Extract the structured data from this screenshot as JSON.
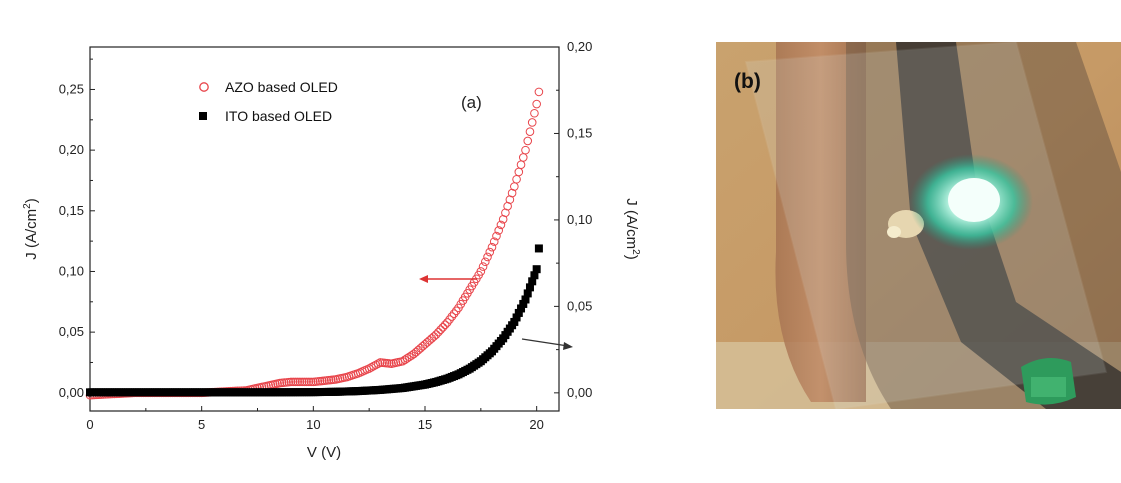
{
  "chart_data": {
    "type": "scatter",
    "panel_label": "(a)",
    "xlabel": "V (V)",
    "ylabel_left": "J (A/cm",
    "ylabel_right": "J (A/cm",
    "ylabel_unit_sup": "2",
    "ylabel_close": ")",
    "xlim": [
      0,
      21
    ],
    "ylim_left": [
      -0.015,
      0.285
    ],
    "ylim_right": [
      -0.0105,
      0.2
    ],
    "x_ticks": [
      0,
      5,
      10,
      15,
      20
    ],
    "x_tick_labels": [
      "0",
      "5",
      "10",
      "15",
      "20"
    ],
    "y_left_ticks": [
      0,
      0.05,
      0.1,
      0.15,
      0.2,
      0.25
    ],
    "y_left_tick_labels": [
      "0,00",
      "0,05",
      "0,10",
      "0,15",
      "0,20",
      "0,25"
    ],
    "y_right_ticks": [
      0,
      0.05,
      0.1,
      0.15,
      0.2
    ],
    "y_right_tick_labels": [
      "0,00",
      "0,05",
      "0,10",
      "0,15",
      "0,20"
    ],
    "grid": false,
    "legend_position": "top-left",
    "series": [
      {
        "name": "AZO based OLED",
        "axis": "left",
        "marker": "open-circle",
        "color": "#e8454b",
        "x": [
          0,
          1,
          2,
          3,
          4,
          5,
          6,
          7,
          7.5,
          8,
          8.5,
          9,
          9.5,
          10,
          10.5,
          11,
          11.5,
          12,
          12.5,
          13,
          13.5,
          14,
          14.5,
          15,
          15.5,
          16,
          16.5,
          17,
          17.5,
          18,
          18.5,
          19,
          19.5,
          20,
          20.1
        ],
        "y": [
          -0.002,
          -0.001,
          0,
          0,
          0,
          0,
          0.001,
          0.002,
          0.004,
          0.006,
          0.008,
          0.009,
          0.009,
          0.009,
          0.01,
          0.011,
          0.013,
          0.016,
          0.02,
          0.025,
          0.024,
          0.026,
          0.032,
          0.04,
          0.048,
          0.058,
          0.07,
          0.085,
          0.1,
          0.12,
          0.143,
          0.17,
          0.2,
          0.238,
          0.248
        ]
      },
      {
        "name": "ITO based OLED",
        "axis": "right",
        "marker": "filled-square",
        "color": "#000000",
        "x": [
          0,
          2,
          4,
          6,
          8,
          10,
          11,
          12,
          13,
          14,
          15,
          15.5,
          16,
          16.5,
          17,
          17.5,
          18,
          18.5,
          19,
          19.5,
          20,
          20.1
        ],
        "y": [
          0.0003,
          0.0003,
          0.0003,
          0.0003,
          0.0003,
          0.0004,
          0.0006,
          0.001,
          0.0017,
          0.0028,
          0.0048,
          0.0063,
          0.0082,
          0.0107,
          0.014,
          0.0183,
          0.024,
          0.0315,
          0.041,
          0.054,
          0.0715,
          0.0835
        ]
      }
    ]
  },
  "photo": {
    "panel_label": "(b)"
  }
}
